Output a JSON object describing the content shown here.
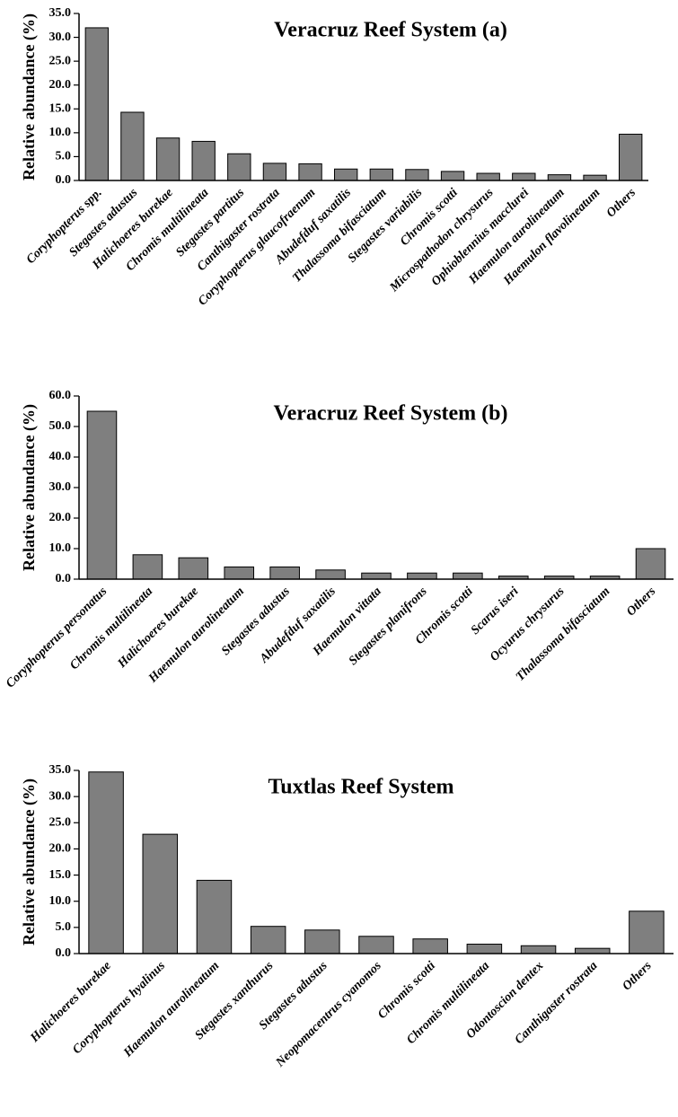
{
  "chart_data": [
    {
      "type": "bar",
      "title": "Veracruz Reef System (a)",
      "xlabel": "",
      "ylabel": "Relative abundance (%)",
      "ylim": [
        0,
        35
      ],
      "yticks": [
        "0.0",
        "5.0",
        "10.0",
        "15.0",
        "20.0",
        "25.0",
        "30.0",
        "35.0"
      ],
      "categories": [
        "Coryphopterus spp.",
        "Stegastes adustus",
        "Halichoeres burekae",
        "Chromis multilineata",
        "Stegastes partitus",
        "Canthigaster rostrata",
        "Coryphopterus glaucofraenum",
        "Abudefduf saxatilis",
        "Thalassoma bifasciatum",
        "Stegastes variabilis",
        "Chromis scotti",
        "Microspathodon chrysurus",
        "Ophioblennius macclurei",
        "Haemulon aurolineatum",
        "Haemulon flavolineatum",
        "Others"
      ],
      "values": [
        32.0,
        14.3,
        8.9,
        8.2,
        5.6,
        3.6,
        3.5,
        2.4,
        2.4,
        2.3,
        1.9,
        1.5,
        1.5,
        1.2,
        1.1,
        9.7
      ]
    },
    {
      "type": "bar",
      "title": "Veracruz Reef System (b)",
      "xlabel": "",
      "ylabel": "Relative abundance (%)",
      "ylim": [
        0,
        60
      ],
      "yticks": [
        "0.0",
        "10.0",
        "20.0",
        "30.0",
        "40.0",
        "50.0",
        "60.0"
      ],
      "categories": [
        "Coryphopterus personatus",
        "Chromis multilineata",
        "Halichoeres burekae",
        "Haemulon aurolineatum",
        "Stegastes adustus",
        "Abudefduf saxatilis",
        "Haemulon vittata",
        "Stegastes planifrons",
        "Chromis scotti",
        "Scarus iseri",
        "Ocyurus chrysurus",
        "Thalassoma bifasciatum",
        "Others"
      ],
      "values": [
        55.0,
        8.0,
        7.0,
        4.0,
        4.0,
        3.0,
        2.0,
        2.0,
        2.0,
        1.0,
        1.0,
        1.0,
        10.0
      ]
    },
    {
      "type": "bar",
      "title": "Tuxtlas Reef System",
      "xlabel": "",
      "ylabel": "Relative abundance (%)",
      "ylim": [
        0,
        35
      ],
      "yticks": [
        "0.0",
        "5.0",
        "10.0",
        "15.0",
        "20.0",
        "25.0",
        "30.0",
        "35.0"
      ],
      "categories": [
        "Halichoeres burekae",
        "Coryphopterus hyalinus",
        "Haemulon aurolineatum",
        "Stegastes xanthurus",
        "Stegastes adustus",
        "Neopomacentrus cyanomos",
        "Chromis scotti",
        "Chromis multilineata",
        "Odontoscion dentex",
        "Canthigaster rostrata",
        "Others"
      ],
      "values": [
        34.7,
        22.8,
        14.0,
        5.2,
        4.5,
        3.3,
        2.8,
        1.8,
        1.5,
        1.0,
        8.1
      ]
    }
  ]
}
